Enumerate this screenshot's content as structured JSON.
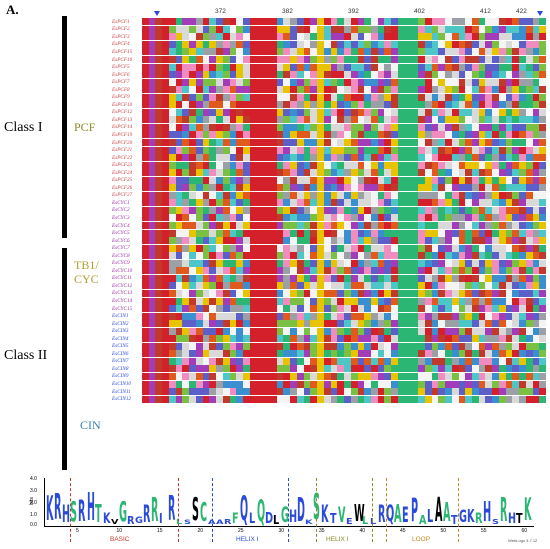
{
  "panel_label": "A.",
  "classes": [
    {
      "name": "Class I",
      "groups": [
        "PCF"
      ]
    },
    {
      "name": "Class II",
      "groups": [
        "TB1/ CYC",
        "CIN"
      ]
    }
  ],
  "group_colors": {
    "PCF": "#8a8a2a",
    "TB1/ CYC": "#b0a030",
    "CIN": "#3c7fb0"
  },
  "positions": [
    "372",
    "382",
    "392",
    "402",
    "412",
    "422"
  ],
  "sequences": [
    "EsPCF1",
    "EsPCF2",
    "EsPCF3",
    "EsPCF4",
    "EsPCF15",
    "EsPCF16",
    "EsPCF5",
    "EsPCF6",
    "EsPCF7",
    "EsPCF8",
    "EsPCF9",
    "EsPCF10",
    "EsPCF12",
    "EsPCF13",
    "EsPCF14",
    "EsPCF19",
    "EsPCF20",
    "EsPCF21",
    "EsPCF22",
    "EsPCF23",
    "EsPCF24",
    "EsPCF25",
    "EsPCF26",
    "EsPCF27",
    "EsCYC1",
    "EsCYC2",
    "EsCYC3",
    "EsCYC4",
    "EsCYC5",
    "EsCYC6",
    "EsCYC7",
    "EsCYC8",
    "EsCYC9",
    "EsCYC10",
    "EsCYC11",
    "EsCYC12",
    "EsCYC13",
    "EsCYC14",
    "EsCYC15",
    "EsCIN1",
    "EsCIN2",
    "EsCIN3",
    "EsCIN4",
    "EsCIN5",
    "EsCIN6",
    "EsCIN7",
    "EsCIN8",
    "EsCIN9",
    "EsCIN10",
    "EsCIN11",
    "EsCIN12"
  ],
  "logo": {
    "y_label": "bits",
    "y_ticks": [
      "4.0",
      "3.0",
      "2.0",
      "1.0",
      "0.0"
    ],
    "x_ticks": [
      "5",
      "10",
      "15",
      "20",
      "25",
      "30",
      "35",
      "40",
      "45",
      "50",
      "55",
      "60"
    ],
    "regions": [
      {
        "name": "BASIC",
        "color": "#c0392b"
      },
      {
        "name": "HELIX I",
        "color": "#2a4bd7"
      },
      {
        "name": "HELIX I",
        "color": "#8a8a2a"
      },
      {
        "name": "LOOP",
        "color": "#c08a20"
      }
    ],
    "credit": "WebLogo 3.7.12"
  }
}
